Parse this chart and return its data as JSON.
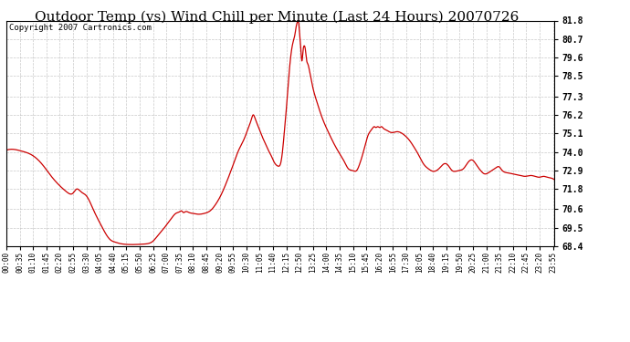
{
  "title": "Outdoor Temp (vs) Wind Chill per Minute (Last 24 Hours) 20070726",
  "copyright_text": "Copyright 2007 Cartronics.com",
  "line_color": "#cc0000",
  "background_color": "#ffffff",
  "grid_color": "#bbbbbb",
  "ylim": [
    68.4,
    81.8
  ],
  "yticks": [
    68.4,
    69.5,
    70.6,
    71.8,
    72.9,
    74.0,
    75.1,
    76.2,
    77.3,
    78.5,
    79.6,
    80.7,
    81.8
  ],
  "title_fontsize": 11,
  "xlabel_fontsize": 5.5,
  "ylabel_fontsize": 7,
  "copyright_fontsize": 6.5,
  "waypoints": [
    [
      0,
      74.1
    ],
    [
      20,
      74.15
    ],
    [
      40,
      74.05
    ],
    [
      60,
      73.9
    ],
    [
      80,
      73.6
    ],
    [
      100,
      73.1
    ],
    [
      120,
      72.5
    ],
    [
      140,
      72.0
    ],
    [
      160,
      71.6
    ],
    [
      175,
      71.55
    ],
    [
      185,
      71.8
    ],
    [
      195,
      71.65
    ],
    [
      210,
      71.4
    ],
    [
      230,
      70.5
    ],
    [
      250,
      69.6
    ],
    [
      265,
      69.0
    ],
    [
      275,
      68.75
    ],
    [
      285,
      68.65
    ],
    [
      295,
      68.58
    ],
    [
      310,
      68.52
    ],
    [
      330,
      68.5
    ],
    [
      355,
      68.52
    ],
    [
      370,
      68.55
    ],
    [
      385,
      68.7
    ],
    [
      400,
      69.1
    ],
    [
      415,
      69.5
    ],
    [
      425,
      69.8
    ],
    [
      435,
      70.1
    ],
    [
      445,
      70.35
    ],
    [
      455,
      70.45
    ],
    [
      460,
      70.5
    ],
    [
      465,
      70.4
    ],
    [
      470,
      70.45
    ],
    [
      480,
      70.4
    ],
    [
      490,
      70.35
    ],
    [
      505,
      70.3
    ],
    [
      520,
      70.35
    ],
    [
      535,
      70.5
    ],
    [
      550,
      70.9
    ],
    [
      565,
      71.5
    ],
    [
      580,
      72.3
    ],
    [
      595,
      73.2
    ],
    [
      610,
      74.1
    ],
    [
      625,
      74.8
    ],
    [
      635,
      75.4
    ],
    [
      643,
      75.9
    ],
    [
      648,
      76.2
    ],
    [
      653,
      76.0
    ],
    [
      658,
      75.7
    ],
    [
      665,
      75.3
    ],
    [
      672,
      74.9
    ],
    [
      680,
      74.5
    ],
    [
      688,
      74.1
    ],
    [
      695,
      73.8
    ],
    [
      703,
      73.4
    ],
    [
      710,
      73.2
    ],
    [
      715,
      73.15
    ],
    [
      720,
      73.3
    ],
    [
      725,
      74.0
    ],
    [
      730,
      75.2
    ],
    [
      735,
      76.5
    ],
    [
      740,
      78.0
    ],
    [
      745,
      79.3
    ],
    [
      750,
      80.2
    ],
    [
      755,
      80.7
    ],
    [
      758,
      81.0
    ],
    [
      760,
      81.3
    ],
    [
      762,
      81.55
    ],
    [
      764,
      81.7
    ],
    [
      766,
      81.75
    ],
    [
      768,
      81.6
    ],
    [
      770,
      81.0
    ],
    [
      773,
      80.2
    ],
    [
      776,
      79.4
    ],
    [
      779,
      80.0
    ],
    [
      782,
      80.3
    ],
    [
      785,
      80.1
    ],
    [
      788,
      79.5
    ],
    [
      792,
      79.2
    ],
    [
      797,
      78.7
    ],
    [
      805,
      77.8
    ],
    [
      815,
      77.0
    ],
    [
      825,
      76.3
    ],
    [
      835,
      75.7
    ],
    [
      845,
      75.2
    ],
    [
      860,
      74.5
    ],
    [
      875,
      73.9
    ],
    [
      888,
      73.4
    ],
    [
      898,
      73.0
    ],
    [
      908,
      72.9
    ],
    [
      915,
      72.85
    ],
    [
      920,
      72.9
    ],
    [
      928,
      73.3
    ],
    [
      935,
      73.8
    ],
    [
      942,
      74.4
    ],
    [
      950,
      75.0
    ],
    [
      958,
      75.3
    ],
    [
      963,
      75.45
    ],
    [
      966,
      75.5
    ],
    [
      970,
      75.45
    ],
    [
      975,
      75.5
    ],
    [
      980,
      75.45
    ],
    [
      985,
      75.5
    ],
    [
      990,
      75.4
    ],
    [
      998,
      75.3
    ],
    [
      1005,
      75.2
    ],
    [
      1015,
      75.15
    ],
    [
      1025,
      75.2
    ],
    [
      1035,
      75.15
    ],
    [
      1045,
      75.0
    ],
    [
      1058,
      74.7
    ],
    [
      1070,
      74.3
    ],
    [
      1083,
      73.8
    ],
    [
      1095,
      73.3
    ],
    [
      1108,
      73.0
    ],
    [
      1120,
      72.85
    ],
    [
      1130,
      72.9
    ],
    [
      1140,
      73.1
    ],
    [
      1150,
      73.3
    ],
    [
      1160,
      73.2
    ],
    [
      1170,
      72.9
    ],
    [
      1180,
      72.85
    ],
    [
      1190,
      72.9
    ],
    [
      1200,
      73.0
    ],
    [
      1213,
      73.4
    ],
    [
      1225,
      73.5
    ],
    [
      1235,
      73.2
    ],
    [
      1245,
      72.9
    ],
    [
      1255,
      72.7
    ],
    [
      1265,
      72.75
    ],
    [
      1275,
      72.9
    ],
    [
      1285,
      73.05
    ],
    [
      1295,
      73.1
    ],
    [
      1300,
      72.95
    ],
    [
      1308,
      72.8
    ],
    [
      1318,
      72.75
    ],
    [
      1328,
      72.7
    ],
    [
      1338,
      72.65
    ],
    [
      1350,
      72.6
    ],
    [
      1362,
      72.55
    ],
    [
      1375,
      72.6
    ],
    [
      1388,
      72.55
    ],
    [
      1400,
      72.5
    ],
    [
      1410,
      72.55
    ],
    [
      1420,
      72.5
    ],
    [
      1430,
      72.45
    ],
    [
      1439,
      72.35
    ]
  ]
}
